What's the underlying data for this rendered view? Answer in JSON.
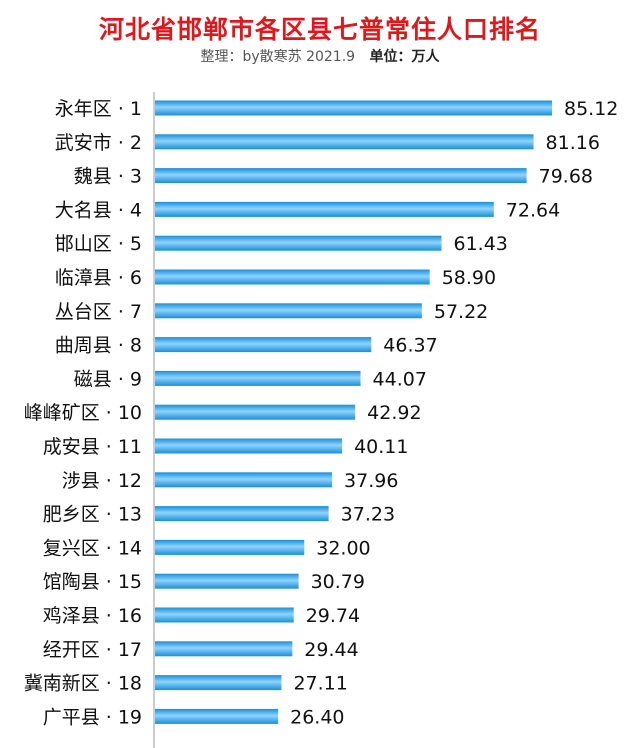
{
  "title": "河北省邯郸市各区县七普常住人口排名",
  "subtitle": {
    "credit": "整理：by散寒苏 2021.9",
    "unit": "单位：万人"
  },
  "colors": {
    "title": "#e0181c",
    "bar_dark": "#1a8fd6",
    "bar_light": "#8fd3ff",
    "axis": "#999999"
  },
  "chart_data": {
    "type": "bar",
    "orientation": "horizontal",
    "title": "河北省邯郸市各区县七普常住人口排名",
    "unit": "万人",
    "categories": [
      "永年区 · 1",
      "武安市 · 2",
      "魏县 · 3",
      "大名县 · 4",
      "邯山区 · 5",
      "临漳县 · 6",
      "丛台区 · 7",
      "曲周县 · 8",
      "磁县 · 9",
      "峰峰矿区 · 10",
      "成安县 · 11",
      "涉县 · 12",
      "肥乡区 · 13",
      "复兴区 · 14",
      "馆陶县 · 15",
      "鸡泽县 · 16",
      "经开区 · 17",
      "冀南新区 · 18",
      "广平县 · 19"
    ],
    "values": [
      85.12,
      81.16,
      79.68,
      72.64,
      61.43,
      58.9,
      57.22,
      46.37,
      44.07,
      42.92,
      40.11,
      37.96,
      37.23,
      32.0,
      30.79,
      29.74,
      29.44,
      27.11,
      26.4
    ],
    "value_labels": [
      "85.12",
      "81.16",
      "79.68",
      "72.64",
      "61.43",
      "58.90",
      "57.22",
      "46.37",
      "44.07",
      "42.92",
      "40.11",
      "37.96",
      "37.23",
      "32.00",
      "30.79",
      "29.74",
      "29.44",
      "27.11",
      "26.40"
    ],
    "xlim": [
      0,
      85.12
    ],
    "grid": false,
    "legend": "none"
  }
}
